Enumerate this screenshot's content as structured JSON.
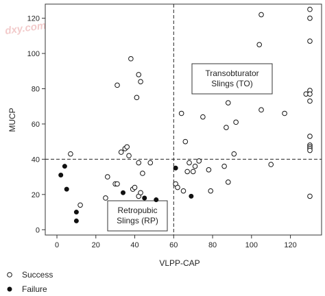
{
  "watermark": "dxy.com",
  "chart_data": {
    "type": "scatter",
    "xlabel": "VLPP-CAP",
    "ylabel": "MUCP",
    "xlim": [
      -6,
      136
    ],
    "ylim": [
      -3,
      128
    ],
    "xticks": [
      0,
      20,
      40,
      60,
      80,
      100,
      120
    ],
    "yticks": [
      0,
      20,
      40,
      60,
      80,
      100,
      120
    ],
    "grid": false,
    "reference_lines": {
      "x": 60,
      "y": 40
    },
    "annotations": [
      {
        "lines": [
          "Transobturator",
          "Slings (TO)"
        ]
      },
      {
        "lines": [
          "Retropubic",
          "Slings (RP)"
        ]
      }
    ],
    "legend": {
      "placement": "bottom-left",
      "entries": [
        "Success",
        "Failure"
      ]
    },
    "series": [
      {
        "name": "Success",
        "marker": "open-circle",
        "points": [
          [
            7,
            43
          ],
          [
            12,
            14
          ],
          [
            25,
            18
          ],
          [
            26,
            30
          ],
          [
            30,
            26
          ],
          [
            31,
            26
          ],
          [
            31,
            82
          ],
          [
            33,
            44
          ],
          [
            35,
            46
          ],
          [
            36,
            47
          ],
          [
            37,
            42
          ],
          [
            38,
            97
          ],
          [
            39,
            23
          ],
          [
            40,
            24
          ],
          [
            41,
            75
          ],
          [
            42,
            88
          ],
          [
            42,
            38
          ],
          [
            42,
            19
          ],
          [
            43,
            84
          ],
          [
            43,
            21
          ],
          [
            44,
            32
          ],
          [
            48,
            38
          ],
          [
            61,
            26
          ],
          [
            62,
            24
          ],
          [
            64,
            66
          ],
          [
            65,
            22
          ],
          [
            66,
            50
          ],
          [
            67,
            33
          ],
          [
            68,
            38
          ],
          [
            70,
            33
          ],
          [
            71,
            36
          ],
          [
            73,
            39
          ],
          [
            75,
            64
          ],
          [
            78,
            34
          ],
          [
            79,
            22
          ],
          [
            86,
            36
          ],
          [
            87,
            58
          ],
          [
            88,
            72
          ],
          [
            88,
            27
          ],
          [
            91,
            43
          ],
          [
            92,
            61
          ],
          [
            104,
            105
          ],
          [
            105,
            122
          ],
          [
            105,
            68
          ],
          [
            110,
            37
          ],
          [
            117,
            66
          ],
          [
            128,
            77
          ],
          [
            130,
            125
          ],
          [
            130,
            120
          ],
          [
            130,
            107
          ],
          [
            130,
            79
          ],
          [
            130,
            77
          ],
          [
            130,
            73
          ],
          [
            130,
            53
          ],
          [
            130,
            48
          ],
          [
            130,
            47
          ],
          [
            130,
            46
          ],
          [
            130,
            45
          ],
          [
            130,
            19
          ]
        ]
      },
      {
        "name": "Failure",
        "marker": "filled-circle",
        "points": [
          [
            2,
            31
          ],
          [
            4,
            36
          ],
          [
            5,
            23
          ],
          [
            10,
            10
          ],
          [
            10,
            5
          ],
          [
            34,
            21
          ],
          [
            45,
            18
          ],
          [
            51,
            17
          ],
          [
            61,
            35
          ],
          [
            69,
            19
          ]
        ]
      }
    ]
  }
}
